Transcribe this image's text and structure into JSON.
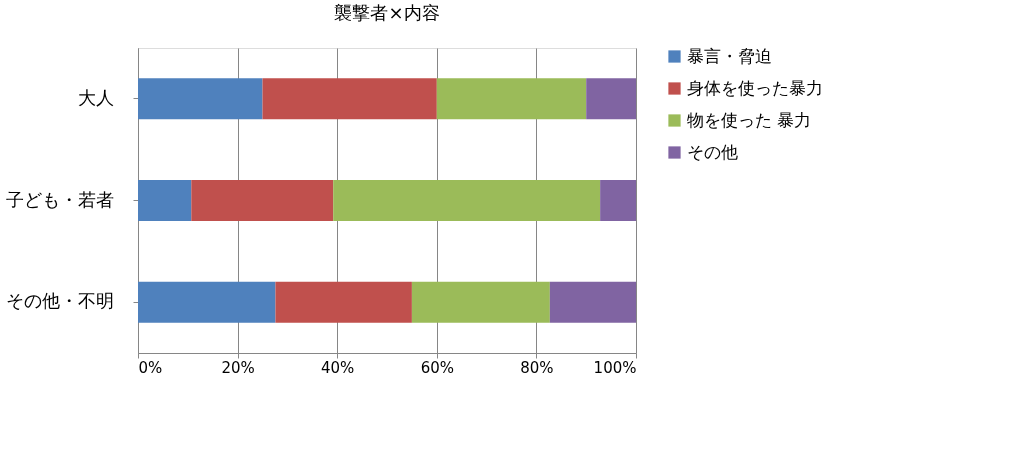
{
  "chart_data": {
    "type": "bar",
    "orientation": "horizontal",
    "stacked": true,
    "title": "襲撃者×内容",
    "categories": [
      "大人",
      "子ども・若者",
      "その他・不明"
    ],
    "series": [
      {
        "name": "暴言・脅迫",
        "color": "#4f81bd",
        "values": [
          25,
          10.7,
          27.6
        ]
      },
      {
        "name": "身体を使った暴力",
        "color": "#c0504d",
        "values": [
          35,
          28.5,
          27.4
        ]
      },
      {
        "name": "物を使った 暴力",
        "color": "#9bbb59",
        "values": [
          30,
          53.6,
          27.7
        ]
      },
      {
        "name": "その他",
        "color": "#8064a2",
        "values": [
          10,
          7.2,
          17.3
        ]
      }
    ],
    "xlim": [
      0,
      100
    ],
    "xticks": [
      {
        "value": 0,
        "label": "0%"
      },
      {
        "value": 20,
        "label": "20%"
      },
      {
        "value": 40,
        "label": "40%"
      },
      {
        "value": 60,
        "label": "60%"
      },
      {
        "value": 80,
        "label": "80%"
      },
      {
        "value": 100,
        "label": "100%"
      }
    ],
    "grid": "x",
    "legend": "right"
  }
}
